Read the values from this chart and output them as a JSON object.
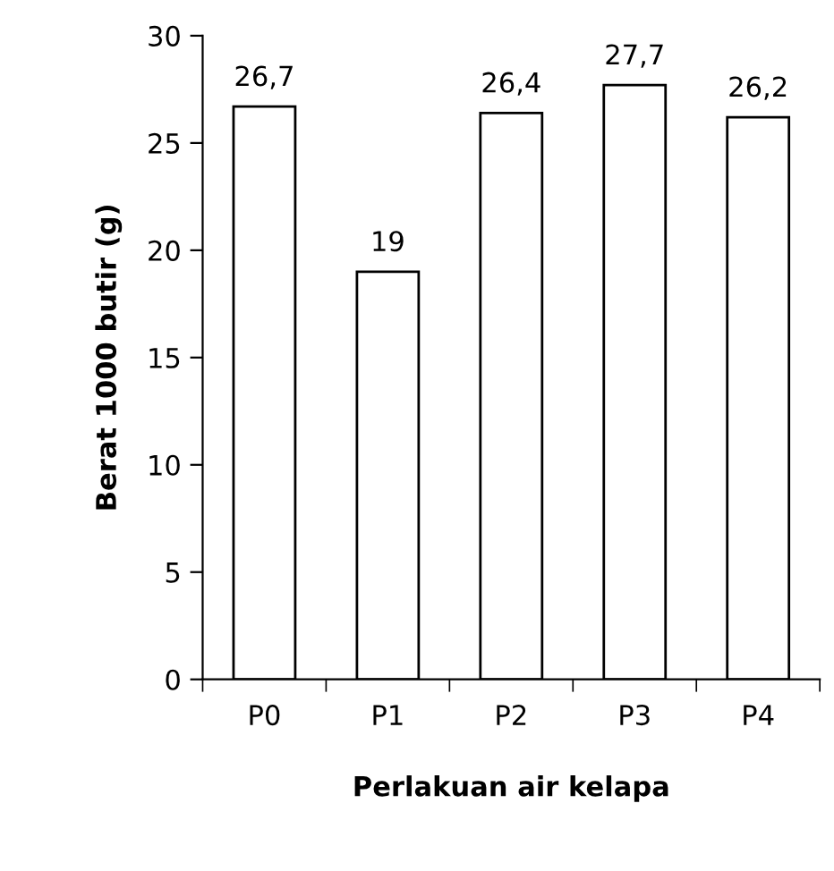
{
  "chart_data": {
    "type": "bar",
    "xlabel": "Perlakuan air kelapa",
    "ylabel": "Berat 1000 butir (g)",
    "categories": [
      "P0",
      "P1",
      "P2",
      "P3",
      "P4"
    ],
    "values": [
      26.7,
      19,
      26.4,
      27.7,
      26.2
    ],
    "value_labels": [
      "26,7",
      "19",
      "26,4",
      "27,7",
      "26,2"
    ],
    "color": "#ffffff",
    "ylim": [
      0,
      30
    ],
    "yticks": [
      0,
      5,
      10,
      15,
      20,
      25,
      30
    ],
    "grid": false,
    "legend": false
  }
}
